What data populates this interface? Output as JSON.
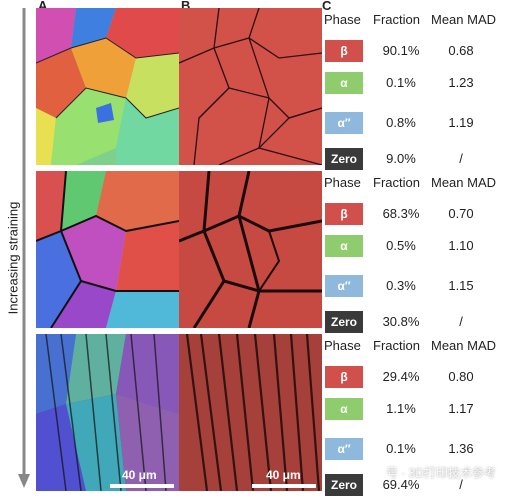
{
  "panels": {
    "a": "A",
    "b": "B",
    "c": "C"
  },
  "axis_label": "Increasing straining",
  "scale_label": "40 μm",
  "watermark": "号 · 3D打印技术参考",
  "colors": {
    "beta": "#d2504c",
    "alpha": "#8fcc6e",
    "alpha_dp": "#8fb8dd",
    "zero": "#3a3a3a"
  },
  "headers": {
    "phase": "Phase",
    "fraction": "Fraction",
    "mad": "Mean MAD"
  },
  "tables": [
    {
      "rows": [
        {
          "phase": "β",
          "fraction": "90.1%",
          "mad": "0.68"
        },
        {
          "phase": "α",
          "fraction": "0.1%",
          "mad": "1.23"
        },
        {
          "phase": "α″",
          "fraction": "0.8%",
          "mad": "1.19"
        },
        {
          "phase": "Zero",
          "fraction": "9.0%",
          "mad": "/"
        }
      ]
    },
    {
      "rows": [
        {
          "phase": "β",
          "fraction": "68.3%",
          "mad": "0.70"
        },
        {
          "phase": "α",
          "fraction": "0.5%",
          "mad": "1.10"
        },
        {
          "phase": "α″",
          "fraction": "0.3%",
          "mad": "1.15"
        },
        {
          "phase": "Zero",
          "fraction": "30.8%",
          "mad": "/"
        }
      ]
    },
    {
      "rows": [
        {
          "phase": "β",
          "fraction": "29.4%",
          "mad": "0.80"
        },
        {
          "phase": "α",
          "fraction": "1.1%",
          "mad": "1.17"
        },
        {
          "phase": "α″",
          "fraction": "0.1%",
          "mad": "1.36"
        },
        {
          "phase": "Zero",
          "fraction": "69.4%",
          "mad": "/"
        }
      ]
    }
  ]
}
